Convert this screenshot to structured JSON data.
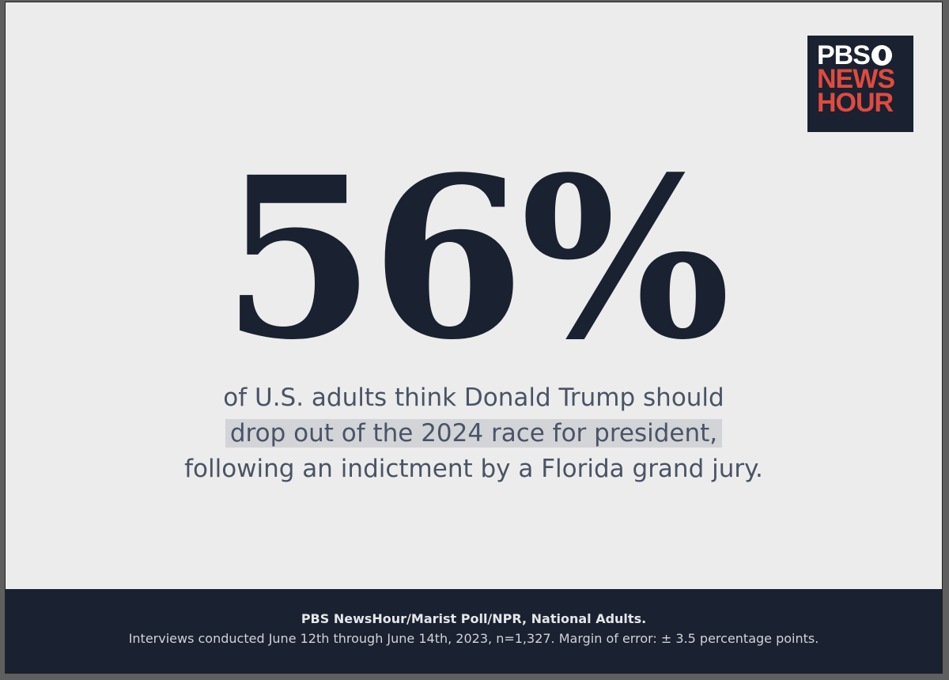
{
  "logo": {
    "line1": "PBS",
    "line2": "NEWS",
    "line3": "HOUR",
    "colors": {
      "background": "#1a2130",
      "red": "#e04a3f"
    }
  },
  "headline": {
    "stat": "56%"
  },
  "subtitle": {
    "line1": "of U.S. adults think Donald Trump should",
    "line2": "drop out of the 2024 race for president,",
    "line3": "following an indictment by a Florida grand jury."
  },
  "footer": {
    "source": "PBS NewsHour/Marist Poll/NPR, National Adults.",
    "details": "Interviews conducted June 12th through June 14th, 2023, n=1,327. Margin of error: ± 3.5 percentage points."
  }
}
